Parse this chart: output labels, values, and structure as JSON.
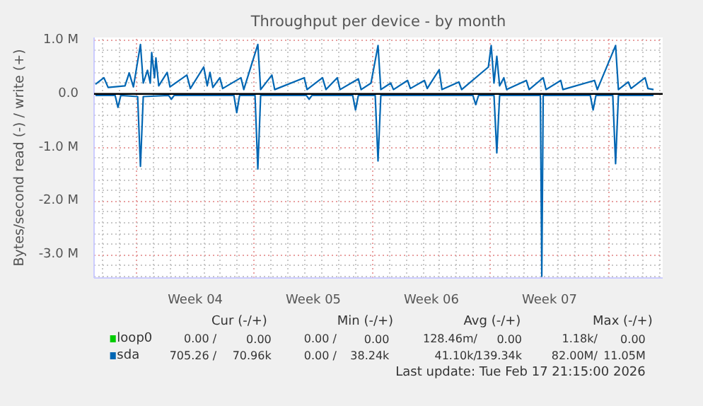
{
  "chart_data": {
    "type": "line",
    "title": "Throughput per device - by month",
    "ylabel": "Bytes/second read (-) / write (+)",
    "xlim": [
      "2026-01-16T12:00",
      "2026-02-19T05:00"
    ],
    "xticks": [
      {
        "value": "2026-01-19",
        "label": null
      },
      {
        "value": "2026-01-22T12:00",
        "label": "Week 04"
      },
      {
        "value": "2026-01-26",
        "label": null
      },
      {
        "value": "2026-01-29T12:00",
        "label": "Week 05"
      },
      {
        "value": "2026-02-02",
        "label": null
      },
      {
        "value": "2026-02-05T12:00",
        "label": "Week 06"
      },
      {
        "value": "2026-02-09",
        "label": null
      },
      {
        "value": "2026-02-12T12:00",
        "label": "Week 07"
      },
      {
        "value": "2026-02-16",
        "label": null
      }
    ],
    "ylim": [
      -3.43,
      1.05
    ],
    "yticks": [
      {
        "value": 1,
        "label": "1.0 M"
      },
      {
        "value": 0,
        "label": "0.0"
      },
      {
        "value": -1,
        "label": "-1.0 M"
      },
      {
        "value": -2,
        "label": "-2.0 M"
      },
      {
        "value": -3,
        "label": "-3.0 M"
      }
    ],
    "grid": true,
    "legend": "bottom",
    "ref_lines": [
      {
        "axis": "y",
        "value": 0,
        "color": "#000000"
      }
    ],
    "series": [
      {
        "name": "loop0",
        "color": "#00cc00"
      },
      {
        "name": "sda",
        "color": "#0066b3",
        "x": [
          "2026-01-16T14:00",
          "2026-01-17T02:00",
          "2026-01-17T08:00",
          "2026-01-18T08:00",
          "2026-01-18T14:00",
          "2026-01-18T20:00",
          "2026-01-19T06:00",
          "2026-01-19T10:00",
          "2026-01-19T16:00",
          "2026-01-19T20:00",
          "2026-01-19T22:00",
          "2026-01-20T02:00",
          "2026-01-20T04:00",
          "2026-01-20T08:00",
          "2026-01-20T20:00",
          "2026-01-21T00:00",
          "2026-01-22T00:00",
          "2026-01-22T05:00",
          "2026-01-23T00:00",
          "2026-01-23T05:00",
          "2026-01-23T09:00",
          "2026-01-23T13:00",
          "2026-01-23T23:00",
          "2026-01-24T03:00",
          "2026-01-25T05:00",
          "2026-01-25T09:00",
          "2026-01-26T05:00",
          "2026-01-26T09:00",
          "2026-01-27T01:00",
          "2026-01-27T05:00",
          "2026-01-28T23:00",
          "2026-01-29T03:00",
          "2026-01-30T01:00",
          "2026-01-30T06:00",
          "2026-01-30T22:00",
          "2026-01-31T02:00",
          "2026-02-01T04:00",
          "2026-02-01T08:00",
          "2026-02-01T22:00",
          "2026-02-02T08:00",
          "2026-02-02T12:00",
          "2026-02-03T02:00",
          "2026-02-03T06:00",
          "2026-02-04T02:00",
          "2026-02-04T06:00",
          "2026-02-05T02:00",
          "2026-02-05T06:00",
          "2026-02-05T23:00",
          "2026-02-06T03:00",
          "2026-02-07T03:00",
          "2026-02-07T07:00",
          "2026-02-08T21:00",
          "2026-02-09T01:00",
          "2026-02-09T05:00",
          "2026-02-09T09:00",
          "2026-02-09T13:00",
          "2026-02-09T19:00",
          "2026-02-09T23:00",
          "2026-02-11T03:00",
          "2026-02-11T07:00",
          "2026-02-12T03:00",
          "2026-02-12T07:00",
          "2026-02-13T04:00",
          "2026-02-13T07:00",
          "2026-02-15T04:00",
          "2026-02-15T08:00",
          "2026-02-16T10:00",
          "2026-02-16T14:00",
          "2026-02-17T04:00",
          "2026-02-17T08:00",
          "2026-02-18T04:00",
          "2026-02-18T08:00",
          "2026-02-18T16:00"
        ],
        "values": [
          0.18,
          0.3,
          0.12,
          0.15,
          0.39,
          0.13,
          0.92,
          0.2,
          0.44,
          0.2,
          0.77,
          0.3,
          0.67,
          0.15,
          0.4,
          0.13,
          0.35,
          0.1,
          0.5,
          0.15,
          0.4,
          0.12,
          0.3,
          0.1,
          0.3,
          0.08,
          0.92,
          0.08,
          0.35,
          0.08,
          0.3,
          0.08,
          0.3,
          0.08,
          0.3,
          0.08,
          0.28,
          0.08,
          0.2,
          0.9,
          0.08,
          0.2,
          0.08,
          0.25,
          0.1,
          0.25,
          0.1,
          0.45,
          0.08,
          0.22,
          0.08,
          0.5,
          0.9,
          0.2,
          0.7,
          0.15,
          0.3,
          0.08,
          0.25,
          0.08,
          0.3,
          0.08,
          0.25,
          0.08,
          0.25,
          0.08,
          0.9,
          0.08,
          0.22,
          0.1,
          0.3,
          0.1,
          0.08
        ]
      },
      {
        "color": "#0066b3",
        "x": [
          "2026-01-16T14:00",
          "2026-01-17T18:00",
          "2026-01-17T22:00",
          "2026-01-18T02:00",
          "2026-01-19T02:00",
          "2026-01-19T06:00",
          "2026-01-19T10:00",
          "2026-01-20T22:00",
          "2026-01-21T02:00",
          "2026-01-21T06:00",
          "2026-01-24T19:00",
          "2026-01-24T23:00",
          "2026-01-25T03:00",
          "2026-01-26T01:00",
          "2026-01-26T05:00",
          "2026-01-26T09:00",
          "2026-01-29T02:00",
          "2026-01-29T06:00",
          "2026-01-29T10:00",
          "2026-01-31T20:00",
          "2026-02-01T00:00",
          "2026-02-01T04:00",
          "2026-02-02T04:00",
          "2026-02-02T08:00",
          "2026-02-02T12:00",
          "2026-02-07T23:00",
          "2026-02-08T03:00",
          "2026-02-08T07:00",
          "2026-02-09T05:00",
          "2026-02-09T09:00",
          "2026-02-09T13:00",
          "2026-02-11T23:00",
          "2026-02-12T01:00",
          "2026-02-12T03:00",
          "2026-02-14T22:00",
          "2026-02-15T02:00",
          "2026-02-15T06:00",
          "2026-02-16T06:00",
          "2026-02-16T10:00",
          "2026-02-16T14:00",
          "2026-02-18T16:00"
        ],
        "values": [
          -0.03,
          -0.03,
          -0.25,
          -0.03,
          -0.05,
          -1.35,
          -0.05,
          -0.03,
          -0.1,
          -0.03,
          -0.03,
          -0.35,
          -0.03,
          -0.03,
          -1.4,
          -0.03,
          -0.03,
          -0.1,
          -0.03,
          -0.03,
          -0.3,
          -0.03,
          -0.03,
          -1.25,
          -0.03,
          -0.03,
          -0.2,
          -0.03,
          -0.03,
          -1.1,
          -0.03,
          -0.03,
          -3.4,
          -0.03,
          -0.03,
          -0.3,
          -0.03,
          -0.03,
          -1.3,
          -0.03,
          -0.03
        ]
      }
    ],
    "annotations": [
      "Cur (-/+)",
      "Min (-/+)",
      "Avg (-/+)",
      "Max (-/+)",
      "0.00 /",
      "0.00",
      "0.00 /",
      "0.00",
      "128.46m/",
      "0.00",
      "1.18k/",
      "0.00",
      "705.26 /",
      "70.96k",
      "0.00 /",
      "38.24k",
      "41.10k/",
      "139.34k",
      "82.00M/",
      "11.05M",
      "Last update: Tue Feb 17 21:15:00 2026"
    ]
  }
}
